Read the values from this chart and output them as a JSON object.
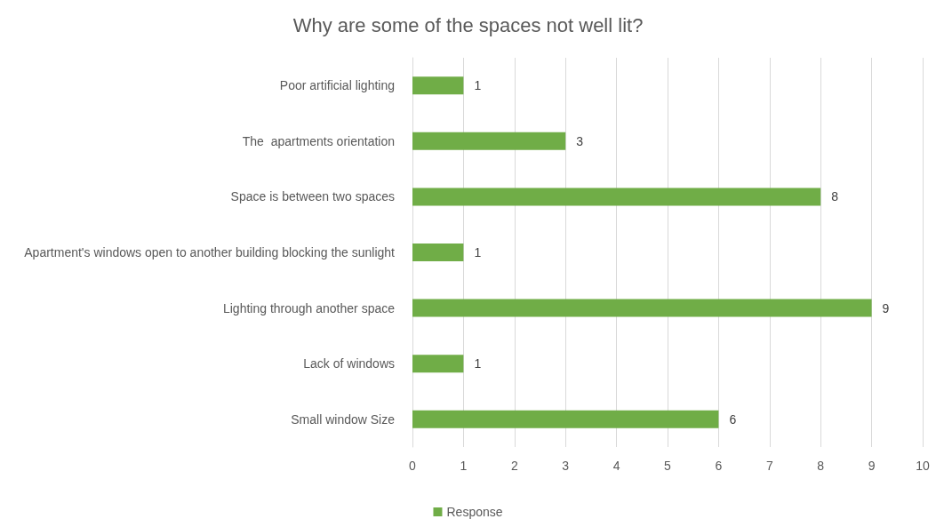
{
  "chart_data": {
    "type": "bar",
    "title": "Why are some of the spaces not well lit?",
    "orientation": "horizontal",
    "categories": [
      "Poor artificial lighting",
      "The  apartments orientation",
      "Space is between two spaces",
      "Apartment's windows open to another building blocking the sunlight",
      "Lighting through another space",
      "Lack of windows",
      "Small window Size"
    ],
    "series": [
      {
        "name": "Response",
        "color": "#70ad47",
        "values": [
          1,
          3,
          8,
          1,
          9,
          1,
          6
        ]
      }
    ],
    "xlim": [
      0,
      10
    ],
    "xticks": [
      0,
      1,
      2,
      3,
      4,
      5,
      6,
      7,
      8,
      9,
      10
    ],
    "grid": "x",
    "legend": "bottom",
    "data_labels": true
  }
}
